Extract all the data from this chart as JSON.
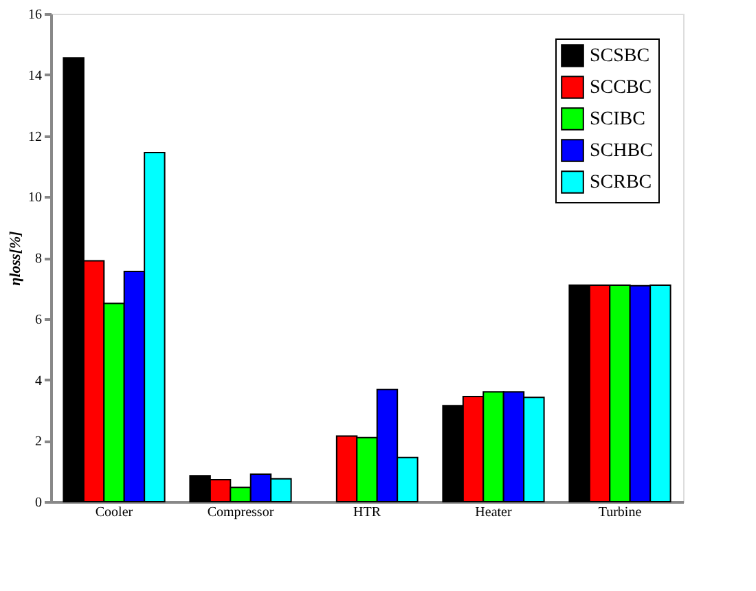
{
  "chart_data": {
    "type": "bar",
    "ylabel": "ηloss[%]",
    "categories": [
      "Cooler",
      "Compressor",
      "HTR",
      "Heater",
      "Turbine"
    ],
    "series": [
      {
        "name": "SCSBC",
        "color": "#000000",
        "values": [
          14.55,
          0.85,
          null,
          3.15,
          7.1
        ]
      },
      {
        "name": "SCCBC",
        "color": "#ff0000",
        "values": [
          7.9,
          0.72,
          2.15,
          3.45,
          7.1
        ]
      },
      {
        "name": "SCIBC",
        "color": "#00ff00",
        "values": [
          6.5,
          0.47,
          2.1,
          3.6,
          7.1
        ]
      },
      {
        "name": "SCHBC",
        "color": "#0000ff",
        "values": [
          7.55,
          0.9,
          3.68,
          3.6,
          7.08
        ]
      },
      {
        "name": "SCRBC",
        "color": "#00ffff",
        "values": [
          11.45,
          0.75,
          1.45,
          3.42,
          7.1
        ]
      }
    ],
    "ylim": [
      0,
      16
    ],
    "yticks": [
      0,
      2,
      4,
      6,
      8,
      10,
      12,
      14,
      16
    ],
    "grid": false,
    "legend": "top right"
  }
}
